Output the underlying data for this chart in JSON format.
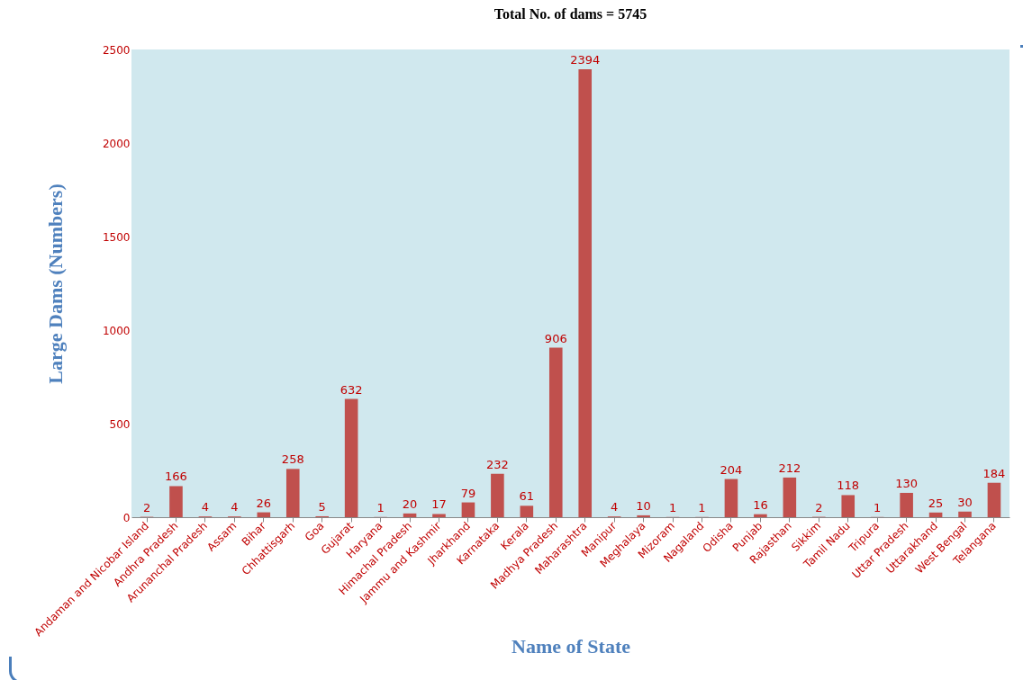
{
  "chart_data": {
    "type": "bar",
    "title": "Total No. of dams = 5745",
    "xlabel": "Name of State",
    "ylabel": "Large Dams (Numbers)",
    "categories": [
      "Andaman and Nicobar Island",
      "Andhra Pradesh",
      "Arunanchal Pradesh",
      "Assam",
      "Bihar",
      "Chhattisgarh",
      "Goa",
      "Gujarat",
      "Haryana",
      "Himachal Pradesh",
      "Jammu and Kashmir",
      "Jharkhand",
      "Karnataka",
      "Kerala",
      "Madhya Pradesh",
      "Maharashtra",
      "Manipur",
      "Meghalaya",
      "Mizoram",
      "Nagaland",
      "Odisha",
      "Punjab",
      "Rajasthan",
      "Sikkim",
      "Tamil Nadu",
      "Tripura",
      "Uttar Pradesh",
      "Uttarakhand",
      "West Bengal",
      "Telangana"
    ],
    "values": [
      2,
      166,
      4,
      4,
      26,
      258,
      5,
      632,
      1,
      20,
      17,
      79,
      232,
      61,
      906,
      2394,
      4,
      10,
      1,
      1,
      204,
      16,
      212,
      2,
      118,
      1,
      130,
      25,
      30,
      184
    ],
    "color": "#c0504d",
    "ylim": [
      0,
      2500
    ],
    "yticks": [
      0,
      500,
      1000,
      1500,
      2000,
      2500
    ],
    "data_labels": true
  }
}
